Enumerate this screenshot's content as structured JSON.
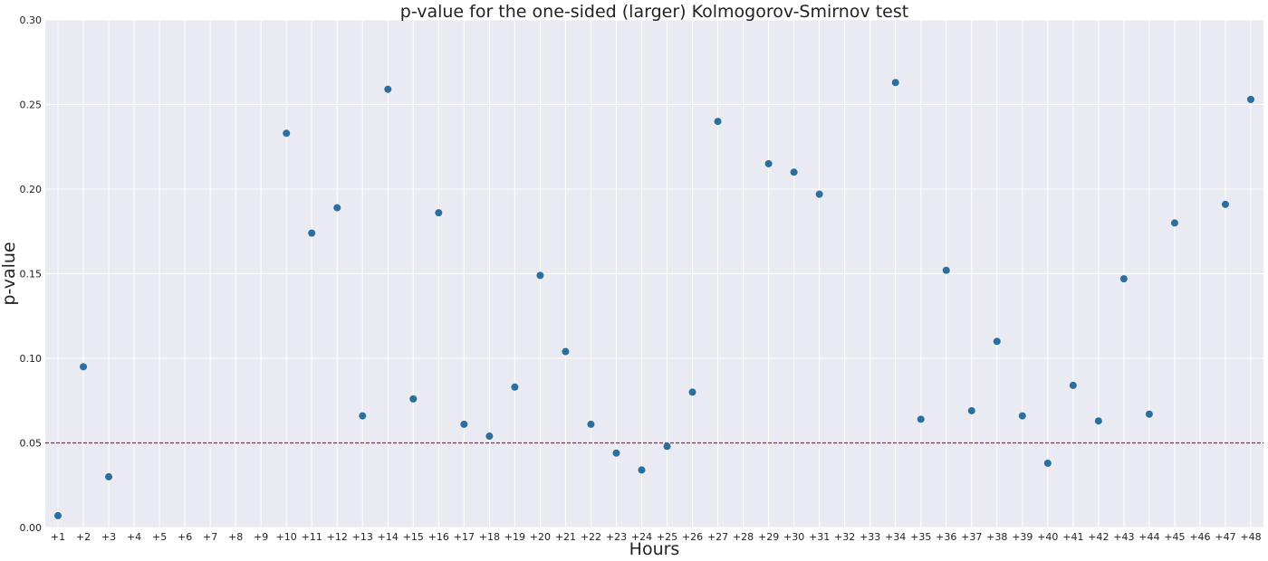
{
  "chart_data": {
    "type": "scatter",
    "title": "p-value for the one-sided (larger) Kolmogorov-Smirnov test",
    "xlabel": "Hours",
    "ylabel": "p-value",
    "categories": [
      "+1",
      "+2",
      "+3",
      "+4",
      "+5",
      "+6",
      "+7",
      "+8",
      "+9",
      "+10",
      "+11",
      "+12",
      "+13",
      "+14",
      "+15",
      "+16",
      "+17",
      "+18",
      "+19",
      "+20",
      "+21",
      "+22",
      "+23",
      "+24",
      "+25",
      "+26",
      "+27",
      "+28",
      "+29",
      "+30",
      "+31",
      "+32",
      "+33",
      "+34",
      "+35",
      "+36",
      "+37",
      "+38",
      "+39",
      "+40",
      "+41",
      "+42",
      "+43",
      "+44",
      "+45",
      "+46",
      "+47",
      "+48"
    ],
    "points": [
      {
        "x": "+1",
        "y": 0.007
      },
      {
        "x": "+2",
        "y": 0.095
      },
      {
        "x": "+3",
        "y": 0.03
      },
      {
        "x": "+10",
        "y": 0.233
      },
      {
        "x": "+11",
        "y": 0.174
      },
      {
        "x": "+12",
        "y": 0.189
      },
      {
        "x": "+13",
        "y": 0.066
      },
      {
        "x": "+14",
        "y": 0.259
      },
      {
        "x": "+15",
        "y": 0.076
      },
      {
        "x": "+16",
        "y": 0.186
      },
      {
        "x": "+17",
        "y": 0.061
      },
      {
        "x": "+18",
        "y": 0.054
      },
      {
        "x": "+19",
        "y": 0.083
      },
      {
        "x": "+20",
        "y": 0.149
      },
      {
        "x": "+21",
        "y": 0.104
      },
      {
        "x": "+22",
        "y": 0.061
      },
      {
        "x": "+23",
        "y": 0.044
      },
      {
        "x": "+24",
        "y": 0.034
      },
      {
        "x": "+25",
        "y": 0.048
      },
      {
        "x": "+26",
        "y": 0.08
      },
      {
        "x": "+27",
        "y": 0.24
      },
      {
        "x": "+29",
        "y": 0.215
      },
      {
        "x": "+30",
        "y": 0.21
      },
      {
        "x": "+31",
        "y": 0.197
      },
      {
        "x": "+34",
        "y": 0.263
      },
      {
        "x": "+35",
        "y": 0.064
      },
      {
        "x": "+36",
        "y": 0.152
      },
      {
        "x": "+37",
        "y": 0.069
      },
      {
        "x": "+38",
        "y": 0.11
      },
      {
        "x": "+39",
        "y": 0.066
      },
      {
        "x": "+40",
        "y": 0.038
      },
      {
        "x": "+41",
        "y": 0.084
      },
      {
        "x": "+42",
        "y": 0.063
      },
      {
        "x": "+43",
        "y": 0.147
      },
      {
        "x": "+44",
        "y": 0.067
      },
      {
        "x": "+45",
        "y": 0.18
      },
      {
        "x": "+47",
        "y": 0.191
      },
      {
        "x": "+48",
        "y": 0.253
      }
    ],
    "ylim": [
      0,
      0.3
    ],
    "yticks": [
      "0.00",
      "0.05",
      "0.10",
      "0.15",
      "0.20",
      "0.25",
      "0.30"
    ],
    "reference_line": {
      "y": 0.05,
      "style": "dashed",
      "color": "#b22222"
    },
    "grid": true,
    "colors": {
      "point": "#2a6f9e",
      "background": "#eaeaf2",
      "grid": "#ffffff"
    }
  }
}
